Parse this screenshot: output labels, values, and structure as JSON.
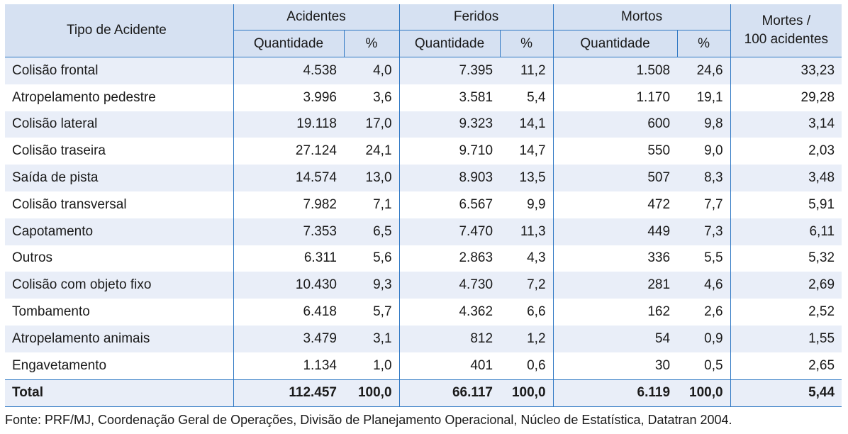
{
  "header": {
    "stub": "Tipo de Acidente",
    "groups": [
      "Acidentes",
      "Feridos",
      "Mortos"
    ],
    "last_line1": "Mortes /",
    "last_line2": "100 acidentes",
    "sub_qty": "Quantidade",
    "sub_pct": "%"
  },
  "rows": [
    [
      "Colisão frontal",
      "4.538",
      "4,0",
      "7.395",
      "11,2",
      "1.508",
      "24,6",
      "33,23"
    ],
    [
      "Atropelamento pedestre",
      "3.996",
      "3,6",
      "3.581",
      "5,4",
      "1.170",
      "19,1",
      "29,28"
    ],
    [
      "Colisão lateral",
      "19.118",
      "17,0",
      "9.323",
      "14,1",
      "600",
      "9,8",
      "3,14"
    ],
    [
      "Colisão traseira",
      "27.124",
      "24,1",
      "9.710",
      "14,7",
      "550",
      "9,0",
      "2,03"
    ],
    [
      "Saída de pista",
      "14.574",
      "13,0",
      "8.903",
      "13,5",
      "507",
      "8,3",
      "3,48"
    ],
    [
      "Colisão transversal",
      "7.982",
      "7,1",
      "6.567",
      "9,9",
      "472",
      "7,7",
      "5,91"
    ],
    [
      "Capotamento",
      "7.353",
      "6,5",
      "7.470",
      "11,3",
      "449",
      "7,3",
      "6,11"
    ],
    [
      "Outros",
      "6.311",
      "5,6",
      "2.863",
      "4,3",
      "336",
      "5,5",
      "5,32"
    ],
    [
      "Colisão com objeto fixo",
      "10.430",
      "9,3",
      "4.730",
      "7,2",
      "281",
      "4,6",
      "2,69"
    ],
    [
      "Tombamento",
      "6.418",
      "5,7",
      "4.362",
      "6,6",
      "162",
      "2,6",
      "2,52"
    ],
    [
      "Atropelamento animais",
      "3.479",
      "3,1",
      "812",
      "1,2",
      "54",
      "0,9",
      "1,55"
    ],
    [
      "Engavetamento",
      "1.134",
      "1,0",
      "401",
      "0,6",
      "30",
      "0,5",
      "2,65"
    ]
  ],
  "total": [
    "Total",
    "112.457",
    "100,0",
    "66.117",
    "100,0",
    "6.119",
    "100,0",
    "5,44"
  ],
  "source": "Fonte: PRF/MJ, Coordenação Geral de Operações, Divisão de Planejamento Operacional, Núcleo de Estatística, Datatran 2004.",
  "colors": {
    "header_bg": "#d6e1f2",
    "stripe_bg": "#e9eef8",
    "rule": "#2f78c4"
  }
}
